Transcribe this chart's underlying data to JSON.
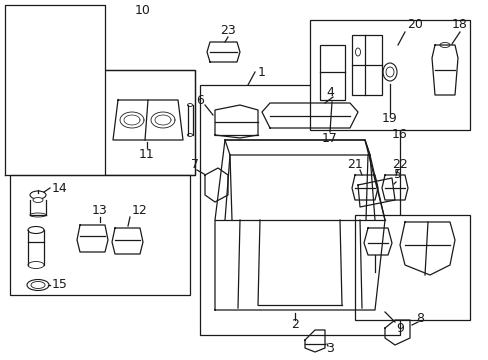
{
  "bg_color": "#ffffff",
  "line_color": "#1a1a1a",
  "lw": 0.9,
  "fig_w": 4.89,
  "fig_h": 3.6,
  "dpi": 100
}
